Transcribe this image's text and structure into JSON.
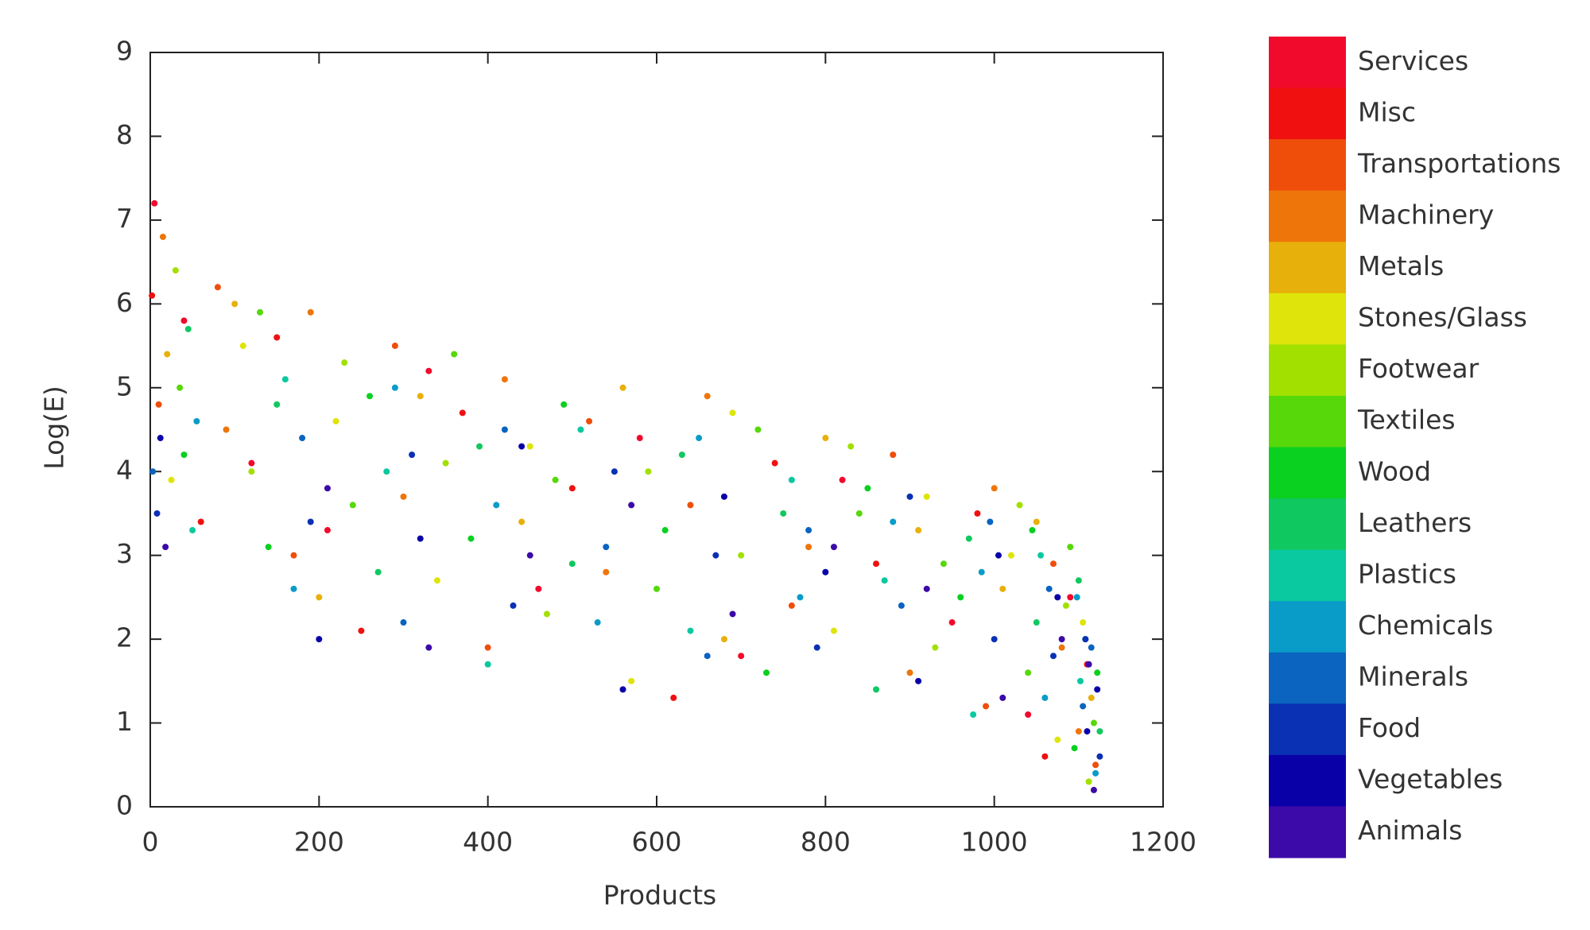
{
  "chart_data": {
    "type": "scatter",
    "x_label": "Products",
    "y_label": "Log(E)",
    "xlim": [
      0,
      1200
    ],
    "xticks": [
      0,
      200,
      400,
      600,
      800,
      1000,
      1200
    ],
    "ylim": [
      0,
      9
    ],
    "yticks": [
      0,
      1,
      2,
      3,
      4,
      5,
      6,
      7,
      8,
      9
    ],
    "grid": false,
    "series": [
      {
        "name": "Services",
        "color": "#f20a2c",
        "x": [
          5,
          40,
          120,
          210,
          330,
          460,
          580,
          700,
          820,
          950,
          1040,
          1090
        ],
        "values": [
          7.2,
          5.8,
          4.1,
          3.3,
          5.2,
          2.6,
          4.4,
          1.8,
          3.9,
          2.2,
          1.1,
          2.5
        ]
      },
      {
        "name": "Misc",
        "color": "#f01010",
        "x": [
          2,
          60,
          150,
          250,
          370,
          500,
          620,
          740,
          860,
          980,
          1060,
          1110
        ],
        "values": [
          6.1,
          3.4,
          5.6,
          2.1,
          4.7,
          3.8,
          1.3,
          4.1,
          2.9,
          3.5,
          0.6,
          1.7
        ]
      },
      {
        "name": "Transportations",
        "color": "#ef4e0a",
        "x": [
          10,
          80,
          170,
          290,
          400,
          520,
          640,
          760,
          880,
          990,
          1070,
          1120
        ],
        "values": [
          4.8,
          6.2,
          3.0,
          5.5,
          1.9,
          4.6,
          3.6,
          2.4,
          4.2,
          1.2,
          2.9,
          0.5
        ]
      },
      {
        "name": "Machinery",
        "color": "#ee750a",
        "x": [
          15,
          90,
          190,
          300,
          420,
          540,
          660,
          780,
          900,
          1000,
          1080,
          1100
        ],
        "values": [
          6.8,
          4.5,
          5.9,
          3.7,
          5.1,
          2.8,
          4.9,
          3.1,
          1.6,
          3.8,
          1.9,
          0.9
        ]
      },
      {
        "name": "Metals",
        "color": "#e8b00a",
        "x": [
          20,
          100,
          200,
          320,
          440,
          560,
          680,
          800,
          910,
          1010,
          1050,
          1115
        ],
        "values": [
          5.4,
          6.0,
          2.5,
          4.9,
          3.4,
          5.0,
          2.0,
          4.4,
          3.3,
          2.6,
          3.4,
          1.3
        ]
      },
      {
        "name": "Stones/Glass",
        "color": "#dfe40a",
        "x": [
          25,
          110,
          220,
          340,
          450,
          570,
          690,
          810,
          920,
          1020,
          1075,
          1105
        ],
        "values": [
          3.9,
          5.5,
          4.6,
          2.7,
          4.3,
          1.5,
          4.7,
          2.1,
          3.7,
          3.0,
          0.8,
          2.2
        ]
      },
      {
        "name": "Footwear",
        "color": "#a2e000",
        "x": [
          30,
          120,
          230,
          350,
          470,
          590,
          700,
          830,
          930,
          1030,
          1085,
          1112
        ],
        "values": [
          6.4,
          4.0,
          5.3,
          4.1,
          2.3,
          4.0,
          3.0,
          4.3,
          1.9,
          3.6,
          2.4,
          0.3
        ]
      },
      {
        "name": "Textiles",
        "color": "#56d80a",
        "x": [
          35,
          130,
          240,
          360,
          480,
          600,
          720,
          840,
          940,
          1040,
          1090,
          1118
        ],
        "values": [
          5.0,
          5.9,
          3.6,
          5.4,
          3.9,
          2.6,
          4.5,
          3.5,
          2.9,
          1.6,
          3.1,
          1.0
        ]
      },
      {
        "name": "Wood",
        "color": "#0ad020",
        "x": [
          40,
          140,
          260,
          380,
          490,
          610,
          730,
          850,
          960,
          1045,
          1095,
          1122
        ],
        "values": [
          4.2,
          3.1,
          4.9,
          3.2,
          4.8,
          3.3,
          1.6,
          3.8,
          2.5,
          3.3,
          0.7,
          1.6
        ]
      },
      {
        "name": "Leathers",
        "color": "#10c860",
        "x": [
          45,
          150,
          270,
          390,
          500,
          630,
          750,
          860,
          970,
          1050,
          1100,
          1125
        ],
        "values": [
          5.7,
          4.8,
          2.8,
          4.3,
          2.9,
          4.2,
          3.5,
          1.4,
          3.2,
          2.2,
          2.7,
          0.9
        ]
      },
      {
        "name": "Plastics",
        "color": "#0ac8a0",
        "x": [
          50,
          160,
          280,
          400,
          510,
          640,
          760,
          870,
          975,
          1055,
          1102,
          1108
        ],
        "values": [
          3.3,
          5.1,
          4.0,
          1.7,
          4.5,
          2.1,
          3.9,
          2.7,
          1.1,
          3.0,
          1.5,
          2.0
        ]
      },
      {
        "name": "Chemicals",
        "color": "#0a9cc8",
        "x": [
          55,
          170,
          290,
          410,
          530,
          650,
          770,
          880,
          985,
          1060,
          1098,
          1120
        ],
        "values": [
          4.6,
          2.6,
          5.0,
          3.6,
          2.2,
          4.4,
          2.5,
          3.4,
          2.8,
          1.3,
          2.5,
          0.4
        ]
      },
      {
        "name": "Minerals",
        "color": "#0a64c0",
        "x": [
          3,
          180,
          300,
          420,
          540,
          660,
          780,
          890,
          995,
          1065,
          1105,
          1115
        ],
        "values": [
          4.0,
          4.4,
          2.2,
          4.5,
          3.1,
          1.8,
          3.3,
          2.4,
          3.4,
          2.6,
          1.2,
          1.9
        ]
      },
      {
        "name": "Food",
        "color": "#0a30b4",
        "x": [
          8,
          190,
          310,
          430,
          550,
          670,
          790,
          900,
          1000,
          1070,
          1108,
          1125
        ],
        "values": [
          3.5,
          3.4,
          4.2,
          2.4,
          4.0,
          3.0,
          1.9,
          3.7,
          2.0,
          1.8,
          2.0,
          0.6
        ]
      },
      {
        "name": "Vegetables",
        "color": "#0a00a8",
        "x": [
          12,
          200,
          320,
          440,
          560,
          680,
          800,
          910,
          1005,
          1075,
          1110,
          1122
        ],
        "values": [
          4.4,
          2.0,
          3.2,
          4.3,
          1.4,
          3.7,
          2.8,
          1.5,
          3.0,
          2.5,
          0.9,
          1.4
        ]
      },
      {
        "name": "Animals",
        "color": "#3c0aa8",
        "x": [
          18,
          210,
          330,
          450,
          570,
          690,
          810,
          920,
          1010,
          1080,
          1112,
          1118
        ],
        "values": [
          3.1,
          3.8,
          1.9,
          3.0,
          3.6,
          2.3,
          3.1,
          2.6,
          1.3,
          2.0,
          1.7,
          0.2
        ]
      }
    ]
  }
}
